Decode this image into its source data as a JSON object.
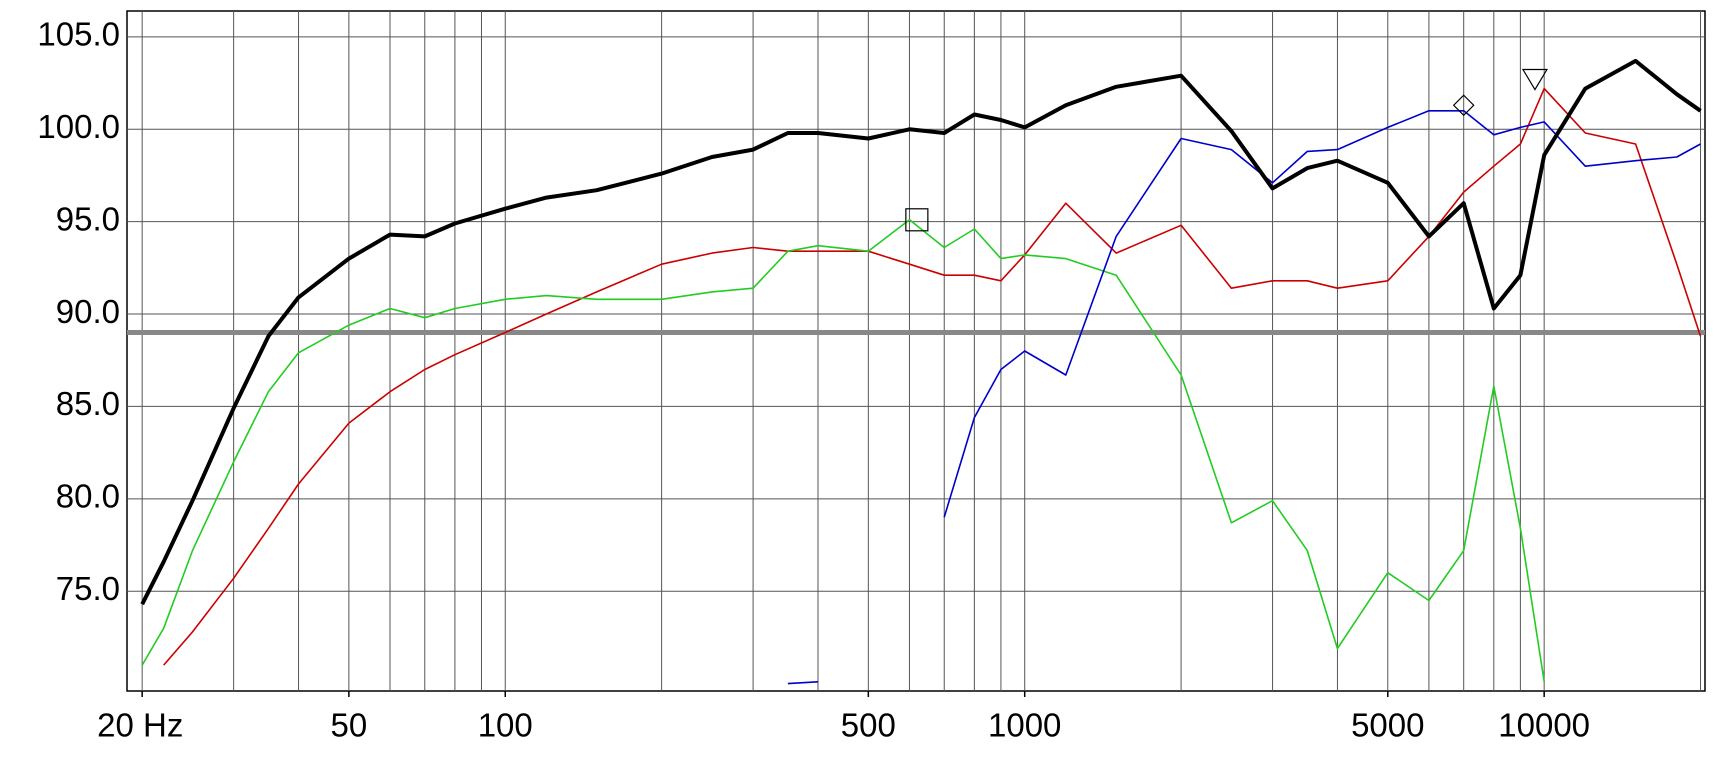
{
  "chart_data": {
    "type": "line",
    "log_x": true,
    "grid": true,
    "xlim": [
      18.7,
      20400
    ],
    "ylim": [
      69.6,
      106.4
    ],
    "xticks": [
      {
        "value": 20,
        "label": "20 Hz"
      },
      50,
      100,
      500,
      1000,
      5000,
      10000
    ],
    "xgrid": [
      20,
      30,
      40,
      50,
      60,
      70,
      80,
      90,
      100,
      200,
      300,
      400,
      500,
      600,
      700,
      800,
      900,
      1000,
      2000,
      3000,
      4000,
      5000,
      6000,
      7000,
      8000,
      9000,
      10000,
      20000
    ],
    "yticks": [
      {
        "value": 75,
        "label": "75.0"
      },
      {
        "value": 80,
        "label": "80.0"
      },
      {
        "value": 85,
        "label": "85.0"
      },
      {
        "value": 90,
        "label": "90.0"
      },
      {
        "value": 95,
        "label": "95.0"
      },
      {
        "value": 100,
        "label": "100.0"
      },
      {
        "value": 105,
        "label": "105.0"
      }
    ],
    "reference_line": {
      "value": 89,
      "color": "#888888"
    },
    "x": [
      20,
      22,
      25,
      30,
      35,
      40,
      50,
      60,
      70,
      80,
      100,
      120,
      150,
      200,
      250,
      300,
      350,
      400,
      500,
      600,
      700,
      800,
      900,
      1000,
      1200,
      1500,
      2000,
      2500,
      3000,
      3500,
      4000,
      5000,
      6000,
      7000,
      8000,
      9000,
      10000,
      12000,
      15000,
      18000,
      20000
    ],
    "series": [
      {
        "color": "#cc0000",
        "width": 1.6,
        "values": [
          null,
          71.0,
          72.8,
          75.7,
          78.4,
          80.8,
          84.1,
          85.8,
          87.0,
          87.8,
          89.0,
          90.0,
          91.2,
          92.7,
          93.3,
          93.6,
          93.4,
          93.4,
          93.4,
          92.7,
          92.1,
          92.1,
          91.8,
          93.2,
          96.0,
          93.3,
          94.8,
          91.4,
          91.8,
          91.8,
          91.4,
          91.8,
          94.2,
          96.6,
          98.0,
          99.2,
          102.2,
          99.8,
          99.2,
          92.7,
          88.8
        ]
      },
      {
        "color": "#22cc22",
        "width": 1.6,
        "values": [
          71.0,
          73.0,
          77.2,
          82.0,
          85.8,
          87.9,
          89.4,
          90.3,
          89.8,
          90.3,
          90.8,
          91.0,
          90.8,
          90.8,
          91.2,
          91.4,
          93.4,
          93.7,
          93.4,
          95.1,
          93.6,
          94.6,
          93.0,
          93.2,
          93.0,
          92.1,
          86.7,
          78.7,
          79.9,
          77.2,
          71.9,
          76.0,
          74.5,
          77.2,
          86.1,
          78.4,
          70.1,
          null,
          null,
          null,
          null
        ]
      },
      {
        "color": "#0000cc",
        "width": 1.6,
        "values": [
          null,
          null,
          null,
          null,
          null,
          null,
          null,
          null,
          null,
          null,
          null,
          null,
          null,
          null,
          null,
          null,
          70.0,
          70.1,
          null,
          null,
          79.0,
          84.4,
          87.0,
          88.0,
          86.7,
          94.2,
          99.5,
          98.9,
          97.1,
          98.8,
          98.9,
          100.1,
          101.0,
          101.0,
          99.7,
          100.1,
          100.4,
          98.0,
          98.3,
          98.5,
          99.2
        ]
      },
      {
        "color": "#000000",
        "width": 4,
        "values": [
          74.3,
          76.6,
          79.9,
          84.9,
          88.8,
          90.9,
          93.0,
          94.3,
          94.2,
          94.9,
          95.7,
          96.3,
          96.7,
          97.6,
          98.5,
          98.9,
          99.8,
          99.8,
          99.5,
          100.0,
          99.8,
          100.8,
          100.5,
          100.1,
          101.3,
          102.3,
          102.9,
          99.9,
          96.8,
          97.9,
          98.3,
          97.1,
          94.2,
          96.0,
          90.3,
          92.1,
          98.6,
          102.2,
          103.7,
          101.9,
          101.0
        ]
      }
    ],
    "markers": [
      {
        "shape": "square",
        "x": 620,
        "y": 95.1
      },
      {
        "shape": "diamond",
        "x": 7000,
        "y": 101.3
      },
      {
        "shape": "triangle",
        "x": 9600,
        "y": 102.8
      }
    ]
  }
}
